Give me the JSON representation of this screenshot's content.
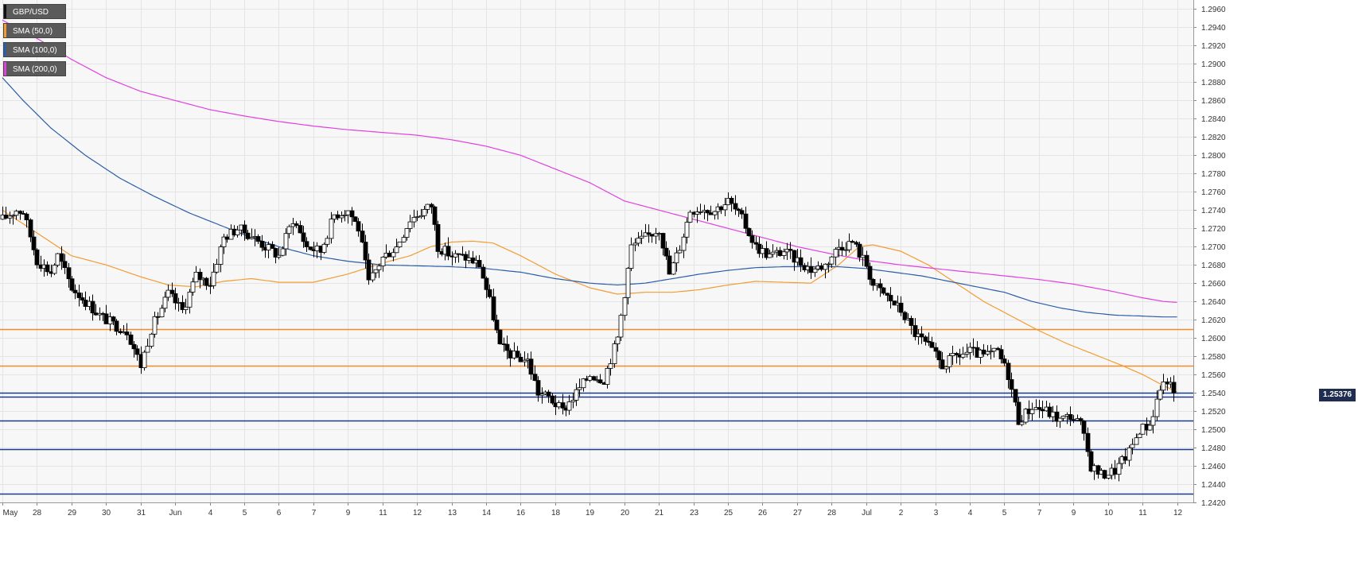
{
  "symbol": "GBP/USD",
  "legend": [
    {
      "label": "GBP/USD",
      "color": "#111111"
    },
    {
      "label": "SMA (50,0)",
      "color": "#f39c33"
    },
    {
      "label": "SMA (100,0)",
      "color": "#2b5ea8"
    },
    {
      "label": "SMA (200,0)",
      "color": "#e040e0"
    }
  ],
  "current_price": "1.25376",
  "colors": {
    "background": "#f7f7f7",
    "grid": "#e4e4e4",
    "up": "#ffffff",
    "down": "#000000",
    "sma50": "#f39c33",
    "sma100": "#2b5ea8",
    "sma200": "#e040e0",
    "resistance": "#f28c28",
    "support": "#1a3a8a",
    "tag": "#1f2e50"
  },
  "chart_data": {
    "type": "candlestick",
    "ylim": [
      1.242,
      1.297
    ],
    "y_ticks": [
      "1.2960",
      "1.2940",
      "1.2920",
      "1.2900",
      "1.2880",
      "1.2860",
      "1.2840",
      "1.2820",
      "1.2800",
      "1.2780",
      "1.2760",
      "1.2740",
      "1.2720",
      "1.2700",
      "1.2680",
      "1.2660",
      "1.2640",
      "1.2620",
      "1.2600",
      "1.2580",
      "1.2560",
      "1.2540",
      "1.2520",
      "1.2500",
      "1.2480",
      "1.2460",
      "1.2440",
      "1.2420"
    ],
    "x_ticks": [
      {
        "label": "May",
        "bar": 0
      },
      {
        "label": "28",
        "bar": 10
      },
      {
        "label": "29",
        "bar": 20
      },
      {
        "label": "30",
        "bar": 30
      },
      {
        "label": "31",
        "bar": 40
      },
      {
        "label": "Jun",
        "bar": 50
      },
      {
        "label": "4",
        "bar": 60
      },
      {
        "label": "5",
        "bar": 70
      },
      {
        "label": "6",
        "bar": 80
      },
      {
        "label": "7",
        "bar": 90
      },
      {
        "label": "9",
        "bar": 100
      },
      {
        "label": "11",
        "bar": 110
      },
      {
        "label": "12",
        "bar": 120
      },
      {
        "label": "13",
        "bar": 130
      },
      {
        "label": "14",
        "bar": 140
      },
      {
        "label": "16",
        "bar": 150
      },
      {
        "label": "18",
        "bar": 160
      },
      {
        "label": "19",
        "bar": 170
      },
      {
        "label": "20",
        "bar": 180
      },
      {
        "label": "21",
        "bar": 190
      },
      {
        "label": "23",
        "bar": 200
      },
      {
        "label": "25",
        "bar": 210
      },
      {
        "label": "26",
        "bar": 220
      },
      {
        "label": "27",
        "bar": 230
      },
      {
        "label": "28",
        "bar": 240
      },
      {
        "label": "Jul",
        "bar": 250
      },
      {
        "label": "2",
        "bar": 260
      },
      {
        "label": "3",
        "bar": 270
      },
      {
        "label": "4",
        "bar": 280
      },
      {
        "label": "5",
        "bar": 290
      },
      {
        "label": "7",
        "bar": 300
      },
      {
        "label": "9",
        "bar": 310
      },
      {
        "label": "10",
        "bar": 320
      },
      {
        "label": "11",
        "bar": 330
      },
      {
        "label": "12",
        "bar": 340
      }
    ],
    "horizontal_levels": [
      {
        "price": 1.261,
        "color": "#f28c28"
      },
      {
        "price": 1.257,
        "color": "#f28c28"
      },
      {
        "price": 1.254,
        "color": "#1a3a8a"
      },
      {
        "price": 1.2536,
        "color": "#1a3a8a"
      },
      {
        "price": 1.251,
        "color": "#1a3a8a"
      },
      {
        "price": 1.2478,
        "color": "#1a3a8a"
      },
      {
        "price": 1.243,
        "color": "#1a3a8a"
      }
    ],
    "price_path": [
      [
        0,
        1.273
      ],
      [
        4,
        1.274
      ],
      [
        6,
        1.2738
      ],
      [
        10,
        1.2685
      ],
      [
        14,
        1.2672
      ],
      [
        16,
        1.269
      ],
      [
        20,
        1.2655
      ],
      [
        24,
        1.264
      ],
      [
        28,
        1.2625
      ],
      [
        32,
        1.2615
      ],
      [
        36,
        1.2608
      ],
      [
        40,
        1.257
      ],
      [
        43,
        1.261
      ],
      [
        48,
        1.2648
      ],
      [
        52,
        1.263
      ],
      [
        56,
        1.2668
      ],
      [
        60,
        1.266
      ],
      [
        64,
        1.271
      ],
      [
        68,
        1.272
      ],
      [
        72,
        1.2712
      ],
      [
        76,
        1.27
      ],
      [
        80,
        1.269
      ],
      [
        84,
        1.273
      ],
      [
        88,
        1.27
      ],
      [
        92,
        1.2695
      ],
      [
        96,
        1.2735
      ],
      [
        100,
        1.274
      ],
      [
        103,
        1.272
      ],
      [
        106,
        1.266
      ],
      [
        110,
        1.2688
      ],
      [
        114,
        1.27
      ],
      [
        118,
        1.273
      ],
      [
        122,
        1.274
      ],
      [
        124,
        1.2745
      ],
      [
        126,
        1.27
      ],
      [
        130,
        1.269
      ],
      [
        134,
        1.2688
      ],
      [
        138,
        1.268
      ],
      [
        141,
        1.264
      ],
      [
        144,
        1.259
      ],
      [
        148,
        1.258
      ],
      [
        152,
        1.2575
      ],
      [
        155,
        1.254
      ],
      [
        158,
        1.2535
      ],
      [
        162,
        1.252
      ],
      [
        166,
        1.254
      ],
      [
        170,
        1.256
      ],
      [
        174,
        1.2555
      ],
      [
        178,
        1.26
      ],
      [
        182,
        1.27
      ],
      [
        186,
        1.271
      ],
      [
        190,
        1.272
      ],
      [
        193,
        1.267
      ],
      [
        196,
        1.27
      ],
      [
        199,
        1.274
      ],
      [
        202,
        1.2742
      ],
      [
        206,
        1.274
      ],
      [
        210,
        1.275
      ],
      [
        214,
        1.273
      ],
      [
        218,
        1.27
      ],
      [
        222,
        1.269
      ],
      [
        226,
        1.2695
      ],
      [
        230,
        1.2685
      ],
      [
        234,
        1.2675
      ],
      [
        238,
        1.268
      ],
      [
        242,
        1.27
      ],
      [
        246,
        1.2705
      ],
      [
        250,
        1.268
      ],
      [
        252,
        1.2658
      ],
      [
        256,
        1.2645
      ],
      [
        260,
        1.263
      ],
      [
        264,
        1.2605
      ],
      [
        268,
        1.259
      ],
      [
        272,
        1.257
      ],
      [
        276,
        1.258
      ],
      [
        280,
        1.2585
      ],
      [
        284,
        1.258
      ],
      [
        288,
        1.2585
      ],
      [
        291,
        1.256
      ],
      [
        294,
        1.251
      ],
      [
        298,
        1.2525
      ],
      [
        302,
        1.252
      ],
      [
        306,
        1.251
      ],
      [
        309,
        1.2515
      ],
      [
        312,
        1.2505
      ],
      [
        315,
        1.246
      ],
      [
        318,
        1.245
      ],
      [
        322,
        1.2455
      ],
      [
        326,
        1.2475
      ],
      [
        329,
        1.25
      ],
      [
        332,
        1.2505
      ],
      [
        335,
        1.2545
      ],
      [
        337,
        1.2555
      ],
      [
        339,
        1.2538
      ]
    ],
    "series": [
      {
        "name": "SMA (50,0)",
        "color": "#f39c33",
        "points": [
          [
            0,
            1.274
          ],
          [
            10,
            1.2715
          ],
          [
            20,
            1.269
          ],
          [
            30,
            1.268
          ],
          [
            40,
            1.2667
          ],
          [
            48,
            1.2658
          ],
          [
            56,
            1.2656
          ],
          [
            64,
            1.2662
          ],
          [
            72,
            1.2665
          ],
          [
            80,
            1.2661
          ],
          [
            90,
            1.2661
          ],
          [
            100,
            1.267
          ],
          [
            110,
            1.2682
          ],
          [
            118,
            1.269
          ],
          [
            124,
            1.27
          ],
          [
            130,
            1.2705
          ],
          [
            136,
            1.2706
          ],
          [
            142,
            1.2704
          ],
          [
            150,
            1.269
          ],
          [
            160,
            1.267
          ],
          [
            170,
            1.2655
          ],
          [
            178,
            1.2648
          ],
          [
            186,
            1.265
          ],
          [
            194,
            1.265
          ],
          [
            202,
            1.2653
          ],
          [
            210,
            1.2658
          ],
          [
            218,
            1.2662
          ],
          [
            226,
            1.2661
          ],
          [
            234,
            1.266
          ],
          [
            242,
            1.268
          ],
          [
            248,
            1.27
          ],
          [
            252,
            1.2702
          ],
          [
            260,
            1.2695
          ],
          [
            268,
            1.268
          ],
          [
            276,
            1.266
          ],
          [
            284,
            1.264
          ],
          [
            292,
            1.2624
          ],
          [
            300,
            1.2608
          ],
          [
            308,
            1.2594
          ],
          [
            316,
            1.2582
          ],
          [
            324,
            1.257
          ],
          [
            330,
            1.256
          ],
          [
            336,
            1.2548
          ],
          [
            340,
            1.2541
          ]
        ]
      },
      {
        "name": "SMA (100,0)",
        "color": "#2b5ea8",
        "points": [
          [
            0,
            1.2885
          ],
          [
            6,
            1.286
          ],
          [
            14,
            1.283
          ],
          [
            24,
            1.28
          ],
          [
            34,
            1.2775
          ],
          [
            44,
            1.2755
          ],
          [
            54,
            1.2737
          ],
          [
            64,
            1.2722
          ],
          [
            72,
            1.271
          ],
          [
            80,
            1.27
          ],
          [
            90,
            1.269
          ],
          [
            100,
            1.2684
          ],
          [
            110,
            1.268
          ],
          [
            120,
            1.2679
          ],
          [
            130,
            1.2678
          ],
          [
            140,
            1.2676
          ],
          [
            150,
            1.2672
          ],
          [
            160,
            1.2665
          ],
          [
            170,
            1.266
          ],
          [
            178,
            1.2658
          ],
          [
            186,
            1.266
          ],
          [
            194,
            1.2665
          ],
          [
            202,
            1.267
          ],
          [
            210,
            1.2674
          ],
          [
            218,
            1.2677
          ],
          [
            226,
            1.2678
          ],
          [
            234,
            1.2678
          ],
          [
            242,
            1.2678
          ],
          [
            250,
            1.2676
          ],
          [
            258,
            1.2672
          ],
          [
            266,
            1.2668
          ],
          [
            274,
            1.2662
          ],
          [
            282,
            1.2656
          ],
          [
            290,
            1.265
          ],
          [
            298,
            1.264
          ],
          [
            306,
            1.2633
          ],
          [
            314,
            1.2628
          ],
          [
            322,
            1.2625
          ],
          [
            330,
            1.2624
          ],
          [
            336,
            1.2623
          ],
          [
            340,
            1.2623
          ]
        ]
      },
      {
        "name": "SMA (200,0)",
        "color": "#e040e0",
        "points": [
          [
            0,
            1.2948
          ],
          [
            10,
            1.2928
          ],
          [
            20,
            1.2905
          ],
          [
            30,
            1.2885
          ],
          [
            40,
            1.287
          ],
          [
            50,
            1.286
          ],
          [
            60,
            1.285
          ],
          [
            70,
            1.2843
          ],
          [
            80,
            1.2837
          ],
          [
            90,
            1.2832
          ],
          [
            100,
            1.2828
          ],
          [
            110,
            1.2825
          ],
          [
            120,
            1.2822
          ],
          [
            130,
            1.2817
          ],
          [
            140,
            1.281
          ],
          [
            150,
            1.28
          ],
          [
            160,
            1.2785
          ],
          [
            170,
            1.277
          ],
          [
            180,
            1.275
          ],
          [
            190,
            1.274
          ],
          [
            200,
            1.273
          ],
          [
            210,
            1.272
          ],
          [
            220,
            1.271
          ],
          [
            230,
            1.27
          ],
          [
            240,
            1.2692
          ],
          [
            250,
            1.2685
          ],
          [
            260,
            1.268
          ],
          [
            270,
            1.2676
          ],
          [
            280,
            1.2672
          ],
          [
            290,
            1.2668
          ],
          [
            300,
            1.2664
          ],
          [
            310,
            1.2659
          ],
          [
            320,
            1.2652
          ],
          [
            330,
            1.2644
          ],
          [
            336,
            1.264
          ],
          [
            340,
            1.2639
          ]
        ]
      }
    ]
  }
}
